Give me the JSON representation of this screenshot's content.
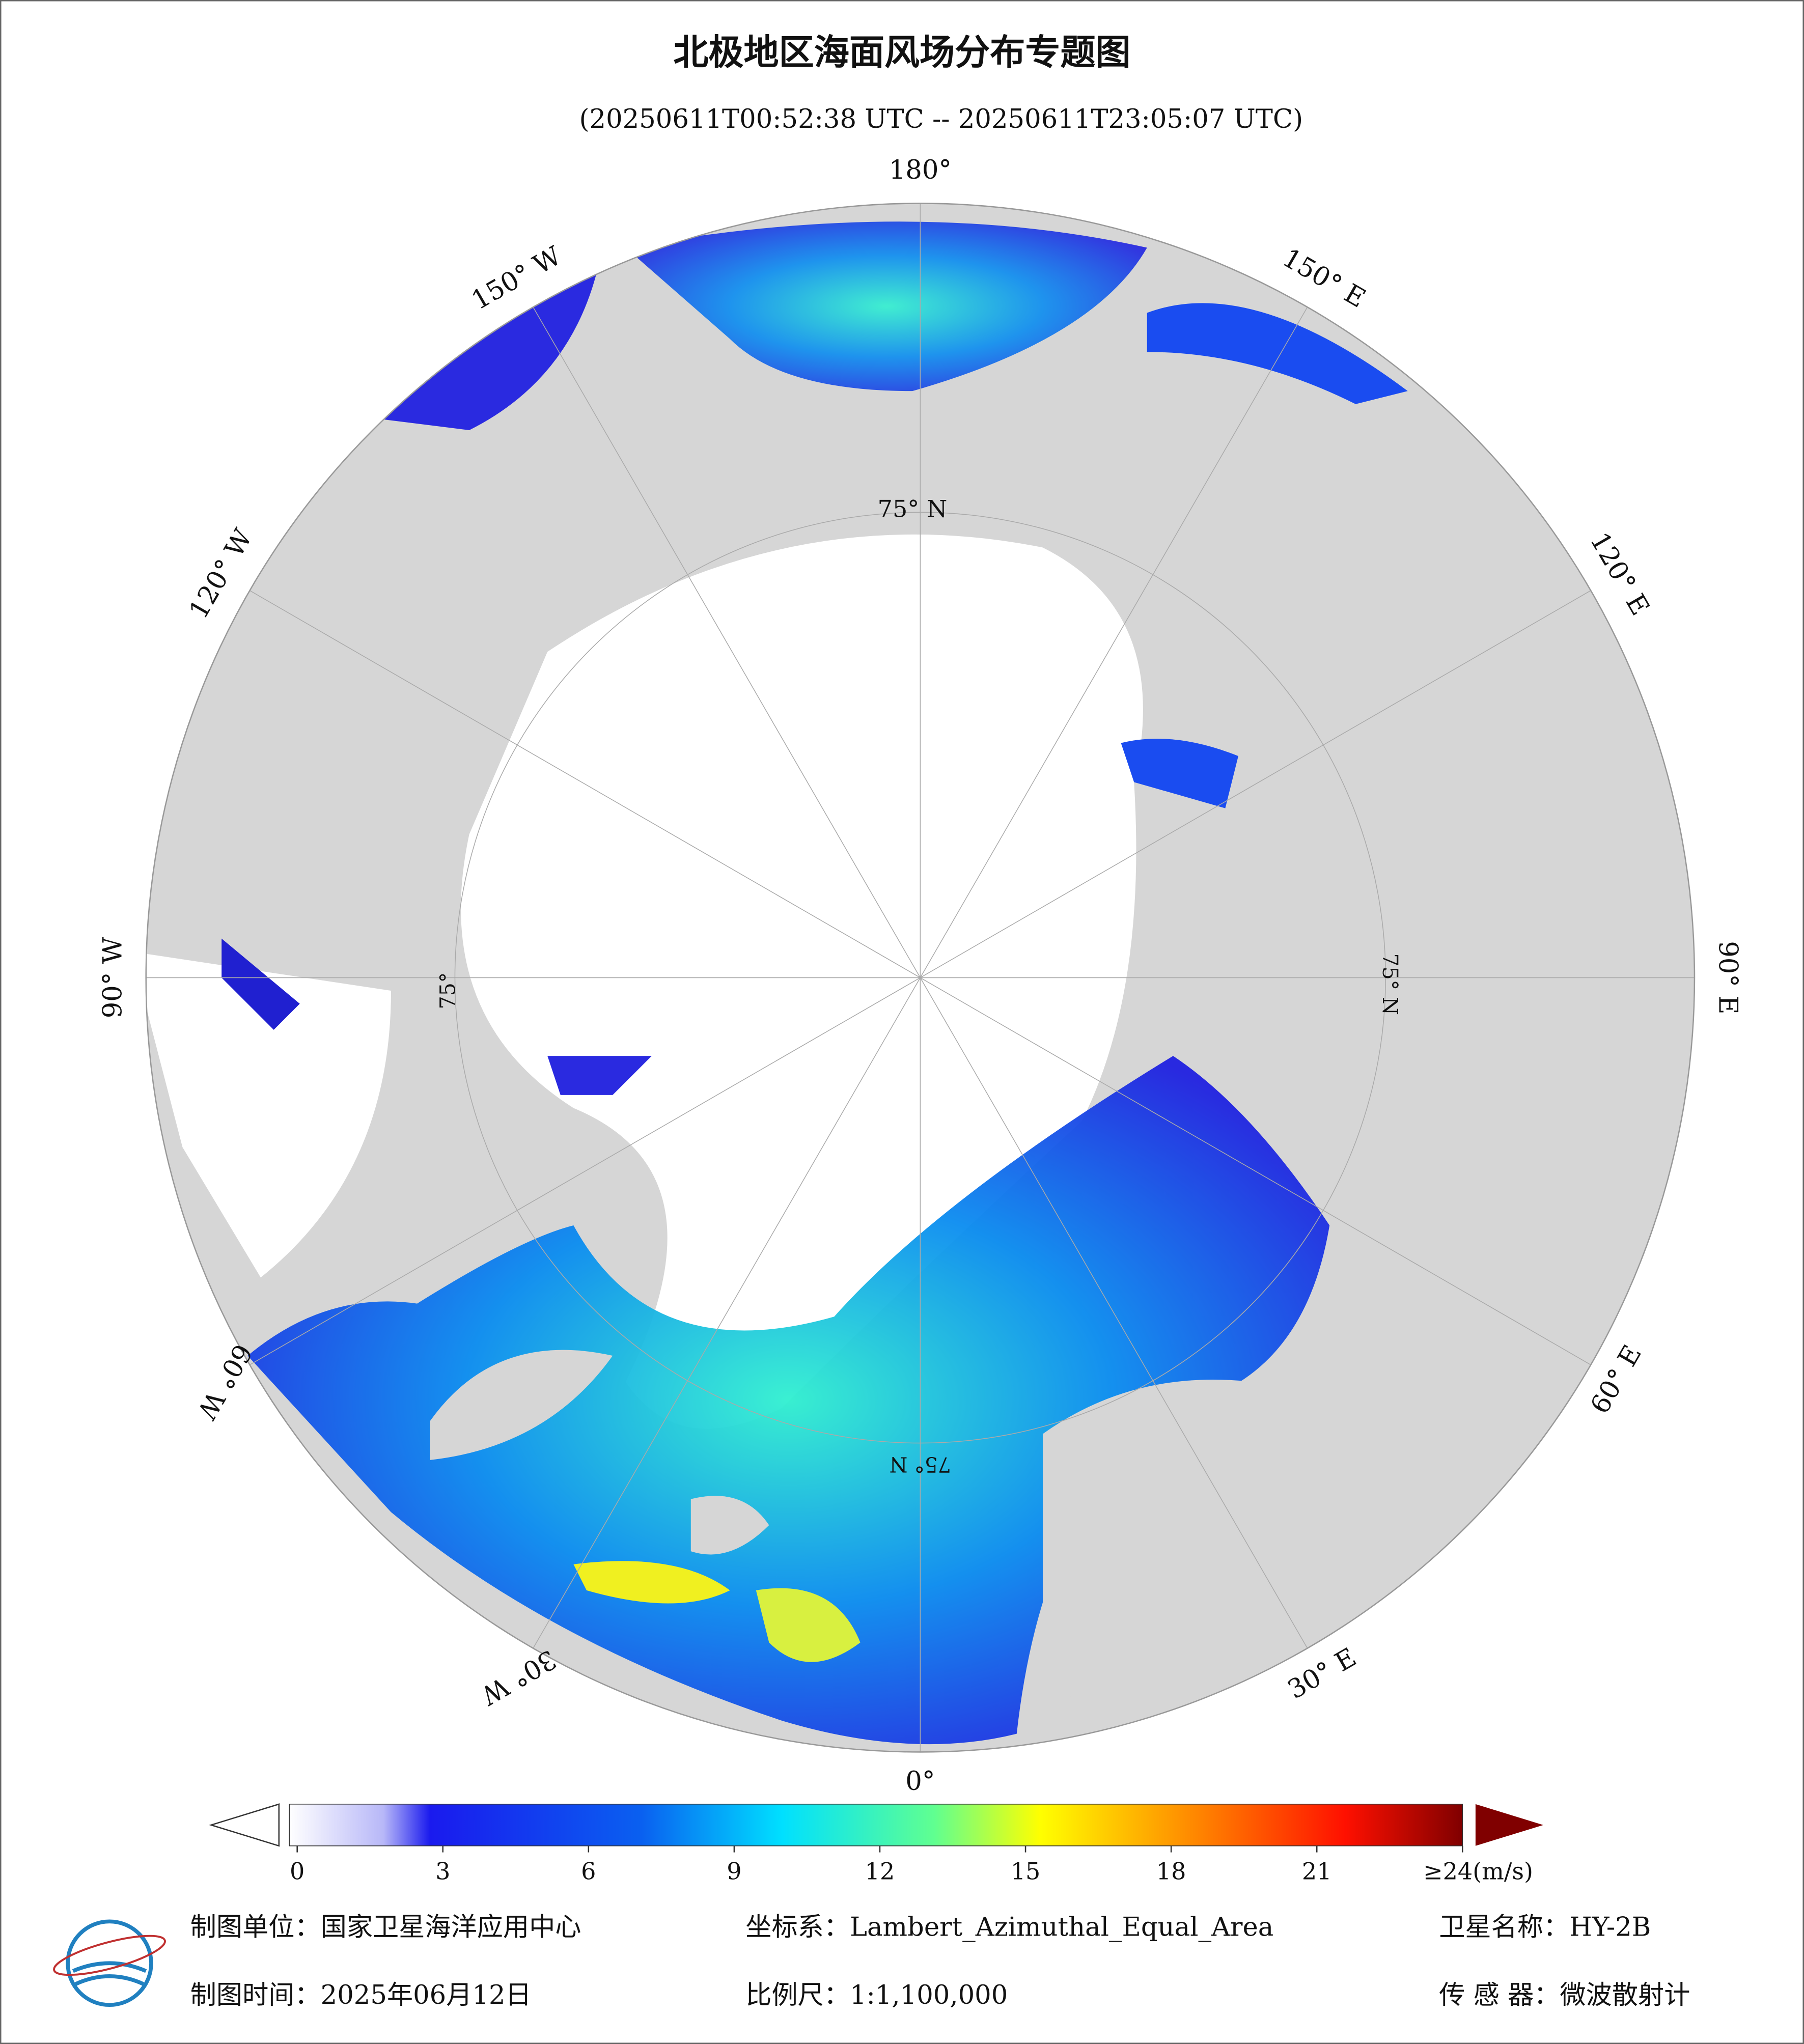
{
  "header": {
    "title": "北极地区海面风场分布专题图",
    "subtitle": "(20250611T00:52:38 UTC -- 20250611T23:05:07 UTC)"
  },
  "map": {
    "longitude_labels": [
      "180°",
      "150° E",
      "120° E",
      "90° E",
      "60° E",
      "30° E",
      "0°",
      "30° W",
      "60° W",
      "90° W",
      "120° W",
      "150° W"
    ],
    "latitude_labels": [
      "75° N",
      "75° N",
      "75° N",
      "75°"
    ]
  },
  "colorbar": {
    "range": [
      0,
      24
    ],
    "ticks": [
      0,
      3,
      6,
      9,
      12,
      15,
      18,
      21,
      {
        "value": 24,
        "label": "≥24(m/s)"
      }
    ]
  },
  "footer": {
    "unit": "制图单位：国家卫星海洋应用中心",
    "crs": "坐标系：Lambert_Azimuthal_Equal_Area",
    "satellite": "卫星名称：HY-2B",
    "date": "制图时间：2025年06月12日",
    "scale": "比例尺：1:1,100,000",
    "sensor": "传 感 器：微波散射计"
  }
}
